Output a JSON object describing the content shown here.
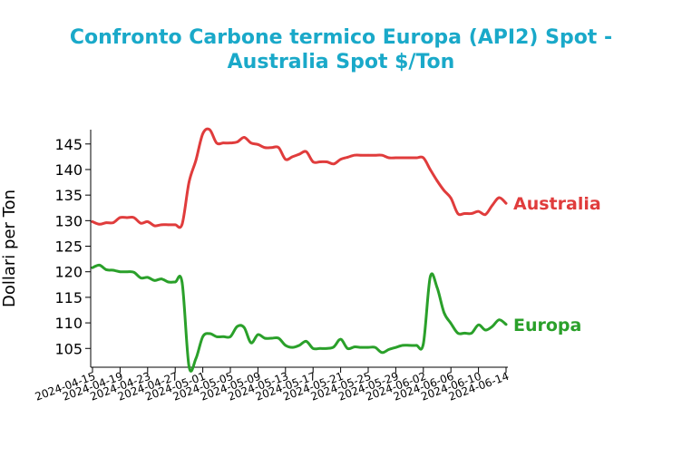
{
  "chart_data": {
    "type": "line",
    "title_lines": [
      "Confronto Carbone termico Europa (API2) Spot -",
      "Australia Spot $/Ton"
    ],
    "title_color": "#1aa9c9",
    "ylabel": "Dollari per Ton",
    "xlabel": "",
    "ylim": [
      101.5,
      147.8
    ],
    "xlim": [
      "2024-04-15",
      "2024-06-14"
    ],
    "yticks": [
      105,
      110,
      115,
      120,
      125,
      130,
      135,
      140,
      145
    ],
    "ytick_labels": [
      "105",
      "110",
      "115",
      "120",
      "125",
      "130",
      "135",
      "140",
      "145"
    ],
    "xticks": [
      "2024-04-15",
      "2024-04-19",
      "2024-04-23",
      "2024-04-27",
      "2024-05-01",
      "2024-05-05",
      "2024-05-09",
      "2024-05-13",
      "2024-05-17",
      "2024-05-21",
      "2024-05-25",
      "2024-05-29",
      "2024-06-02",
      "2024-06-06",
      "2024-06-10",
      "2024-06-14"
    ],
    "grid": false,
    "legend": "none",
    "series": [
      {
        "name": "Australia",
        "color": "#e03c3c",
        "points": [
          [
            "2024-04-15",
            129.8
          ],
          [
            "2024-04-16",
            129.3
          ],
          [
            "2024-04-17",
            129.6
          ],
          [
            "2024-04-18",
            129.6
          ],
          [
            "2024-04-19",
            130.6
          ],
          [
            "2024-04-20",
            130.6
          ],
          [
            "2024-04-21",
            130.6
          ],
          [
            "2024-04-22",
            129.5
          ],
          [
            "2024-04-23",
            129.8
          ],
          [
            "2024-04-24",
            129.0
          ],
          [
            "2024-04-25",
            129.2
          ],
          [
            "2024-04-26",
            129.2
          ],
          [
            "2024-04-27",
            129.2
          ],
          [
            "2024-04-28",
            129.3
          ],
          [
            "2024-04-29",
            137.5
          ],
          [
            "2024-04-30",
            141.8
          ],
          [
            "2024-05-01",
            147.0
          ],
          [
            "2024-05-02",
            147.8
          ],
          [
            "2024-05-03",
            145.2
          ],
          [
            "2024-05-04",
            145.2
          ],
          [
            "2024-05-05",
            145.2
          ],
          [
            "2024-05-06",
            145.4
          ],
          [
            "2024-05-07",
            146.3
          ],
          [
            "2024-05-08",
            145.2
          ],
          [
            "2024-05-09",
            144.9
          ],
          [
            "2024-05-10",
            144.3
          ],
          [
            "2024-05-11",
            144.3
          ],
          [
            "2024-05-12",
            144.3
          ],
          [
            "2024-05-13",
            142.0
          ],
          [
            "2024-05-14",
            142.5
          ],
          [
            "2024-05-15",
            143.0
          ],
          [
            "2024-05-16",
            143.5
          ],
          [
            "2024-05-17",
            141.5
          ],
          [
            "2024-05-18",
            141.5
          ],
          [
            "2024-05-19",
            141.5
          ],
          [
            "2024-05-20",
            141.1
          ],
          [
            "2024-05-21",
            142.0
          ],
          [
            "2024-05-22",
            142.4
          ],
          [
            "2024-05-23",
            142.8
          ],
          [
            "2024-05-24",
            142.8
          ],
          [
            "2024-05-25",
            142.8
          ],
          [
            "2024-05-26",
            142.8
          ],
          [
            "2024-05-27",
            142.8
          ],
          [
            "2024-05-28",
            142.3
          ],
          [
            "2024-05-29",
            142.3
          ],
          [
            "2024-05-30",
            142.3
          ],
          [
            "2024-05-31",
            142.3
          ],
          [
            "2024-06-01",
            142.3
          ],
          [
            "2024-06-02",
            142.3
          ],
          [
            "2024-06-03",
            140.0
          ],
          [
            "2024-06-04",
            137.8
          ],
          [
            "2024-06-05",
            135.9
          ],
          [
            "2024-06-06",
            134.4
          ],
          [
            "2024-06-07",
            131.4
          ],
          [
            "2024-06-08",
            131.4
          ],
          [
            "2024-06-09",
            131.4
          ],
          [
            "2024-06-10",
            131.8
          ],
          [
            "2024-06-11",
            131.2
          ],
          [
            "2024-06-12",
            133.0
          ],
          [
            "2024-06-13",
            134.5
          ],
          [
            "2024-06-14",
            133.4
          ]
        ]
      },
      {
        "name": "Europa",
        "color": "#2aa02a",
        "points": [
          [
            "2024-04-15",
            120.8
          ],
          [
            "2024-04-16",
            121.3
          ],
          [
            "2024-04-17",
            120.4
          ],
          [
            "2024-04-18",
            120.3
          ],
          [
            "2024-04-19",
            120.0
          ],
          [
            "2024-04-20",
            120.0
          ],
          [
            "2024-04-21",
            119.9
          ],
          [
            "2024-04-22",
            118.8
          ],
          [
            "2024-04-23",
            118.9
          ],
          [
            "2024-04-24",
            118.3
          ],
          [
            "2024-04-25",
            118.6
          ],
          [
            "2024-04-26",
            118.0
          ],
          [
            "2024-04-27",
            118.0
          ],
          [
            "2024-04-28",
            117.9
          ],
          [
            "2024-04-29",
            101.5
          ],
          [
            "2024-04-30",
            103.0
          ],
          [
            "2024-05-01",
            107.3
          ],
          [
            "2024-05-02",
            107.9
          ],
          [
            "2024-05-03",
            107.3
          ],
          [
            "2024-05-04",
            107.3
          ],
          [
            "2024-05-05",
            107.3
          ],
          [
            "2024-05-06",
            109.3
          ],
          [
            "2024-05-07",
            109.1
          ],
          [
            "2024-05-08",
            106.1
          ],
          [
            "2024-05-09",
            107.7
          ],
          [
            "2024-05-10",
            107.0
          ],
          [
            "2024-05-11",
            107.0
          ],
          [
            "2024-05-12",
            107.0
          ],
          [
            "2024-05-13",
            105.6
          ],
          [
            "2024-05-14",
            105.2
          ],
          [
            "2024-05-15",
            105.6
          ],
          [
            "2024-05-16",
            106.4
          ],
          [
            "2024-05-17",
            105.0
          ],
          [
            "2024-05-18",
            105.0
          ],
          [
            "2024-05-19",
            105.0
          ],
          [
            "2024-05-20",
            105.3
          ],
          [
            "2024-05-21",
            106.8
          ],
          [
            "2024-05-22",
            105.0
          ],
          [
            "2024-05-23",
            105.3
          ],
          [
            "2024-05-24",
            105.2
          ],
          [
            "2024-05-25",
            105.2
          ],
          [
            "2024-05-26",
            105.2
          ],
          [
            "2024-05-27",
            104.2
          ],
          [
            "2024-05-28",
            104.8
          ],
          [
            "2024-05-29",
            105.2
          ],
          [
            "2024-05-30",
            105.6
          ],
          [
            "2024-05-31",
            105.6
          ],
          [
            "2024-06-01",
            105.6
          ],
          [
            "2024-06-02",
            105.9
          ],
          [
            "2024-06-03",
            119.0
          ],
          [
            "2024-06-04",
            116.9
          ],
          [
            "2024-06-05",
            112.0
          ],
          [
            "2024-06-06",
            109.9
          ],
          [
            "2024-06-07",
            108.0
          ],
          [
            "2024-06-08",
            108.0
          ],
          [
            "2024-06-09",
            108.0
          ],
          [
            "2024-06-10",
            109.6
          ],
          [
            "2024-06-11",
            108.6
          ],
          [
            "2024-06-12",
            109.3
          ],
          [
            "2024-06-13",
            110.6
          ],
          [
            "2024-06-14",
            109.7
          ]
        ]
      }
    ]
  }
}
